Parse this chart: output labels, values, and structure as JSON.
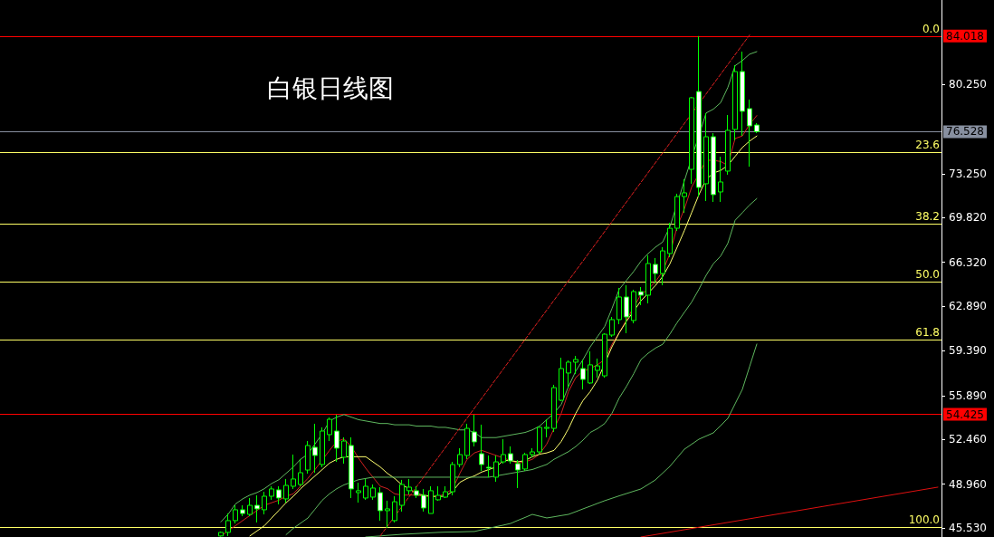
{
  "chart_data": {
    "type": "candlestick",
    "title": "白银日线图",
    "color": "#00ff00",
    "tick_labels": "y",
    "categories": [
      null,
      null,
      null,
      null,
      null,
      null,
      null,
      null,
      null,
      null,
      null,
      null,
      null,
      null,
      null,
      null,
      null,
      null,
      null,
      null,
      null,
      null,
      null,
      null,
      null,
      null,
      null,
      null,
      null,
      null,
      null,
      null,
      null,
      null,
      null,
      null,
      null,
      null,
      null,
      null,
      null,
      null,
      null,
      null,
      null,
      null,
      null,
      null,
      null,
      null,
      null,
      null,
      null,
      null,
      null,
      null,
      null,
      null,
      null,
      null,
      null,
      null,
      null,
      null,
      null,
      null,
      null,
      null,
      null,
      null,
      null,
      null,
      null,
      null,
      null,
      null,
      null,
      null,
      null,
      null,
      null,
      null,
      null,
      null,
      null,
      null,
      null,
      null,
      null,
      null,
      null,
      null,
      null,
      null,
      null,
      null,
      null,
      null,
      null,
      null,
      null,
      null,
      null,
      null,
      null,
      null,
      null,
      null,
      null,
      null,
      null,
      null,
      null,
      null,
      null,
      null,
      null,
      null,
      null,
      null,
      null,
      null,
      null,
      null,
      null,
      null,
      null,
      null,
      null,
      null
    ],
    "ohlc": [
      null,
      null,
      null,
      null,
      null,
      null,
      null,
      null,
      null,
      null,
      null,
      null,
      null,
      null,
      null,
      null,
      null,
      null,
      null,
      null,
      null,
      null,
      null,
      null,
      null,
      null,
      null,
      null,
      null,
      null,
      [
        44.9,
        45.25,
        44.85,
        45.18
      ],
      [
        45.18,
        46.66,
        44.89,
        46.1
      ],
      [
        46.1,
        47.3,
        45.88,
        46.95
      ],
      [
        46.95,
        47.3,
        46.45,
        46.66
      ],
      [
        46.59,
        47.87,
        46.45,
        47.3
      ],
      [
        47.3,
        48.08,
        45.96,
        47.02
      ],
      [
        46.95,
        48.36,
        46.59,
        48.01
      ],
      [
        48.01,
        48.79,
        47.73,
        48.58
      ],
      [
        48.51,
        48.79,
        47.37,
        47.87
      ],
      [
        47.8,
        49.36,
        47.51,
        48.86
      ],
      [
        48.79,
        51.27,
        48.58,
        49.36
      ],
      [
        48.93,
        50.92,
        48.79,
        49.85
      ],
      [
        50.06,
        52.33,
        49.78,
        51.98
      ],
      [
        51.84,
        53.68,
        49.85,
        51.2
      ],
      [
        50.49,
        53.4,
        50.28,
        53.11
      ],
      [
        52.83,
        54.17,
        52.33,
        54.03
      ],
      [
        53.11,
        54.39,
        50.7,
        51.77
      ],
      [
        51.06,
        52.62,
        50.56,
        52.33
      ],
      [
        51.98,
        52.62,
        47.87,
        48.58
      ],
      [
        48.29,
        49.07,
        47.51,
        48.44
      ],
      [
        47.87,
        49.36,
        47.73,
        48.79
      ],
      [
        47.94,
        48.93,
        47.73,
        48.65
      ],
      [
        48.29,
        48.72,
        46.1,
        46.88
      ],
      [
        46.88,
        47.66,
        45.53,
        47.02
      ],
      [
        46.1,
        48.01,
        45.96,
        47.58
      ],
      [
        47.3,
        49.29,
        46.81,
        48.93
      ],
      [
        48.44,
        49.36,
        48.15,
        48.72
      ],
      [
        48.44,
        48.79,
        47.87,
        48.08
      ],
      [
        48.08,
        48.58,
        46.81,
        47.09
      ],
      [
        46.66,
        48.79,
        46.66,
        48.44
      ],
      [
        47.73,
        48.79,
        47.66,
        48.08
      ],
      [
        47.94,
        48.79,
        47.87,
        48.36
      ],
      [
        48.36,
        50.7,
        48.08,
        50.49
      ],
      [
        50.49,
        51.77,
        50.28,
        51.27
      ],
      [
        51.2,
        53.68,
        50.92,
        53.32
      ],
      [
        53.04,
        54.39,
        51.91,
        52.26
      ],
      [
        51.34,
        53.61,
        49.99,
        50.49
      ],
      [
        50.28,
        51.2,
        49.5,
        50.21
      ],
      [
        49.5,
        51.2,
        49.14,
        50.7
      ],
      [
        50.7,
        52.47,
        50.56,
        51.27
      ],
      [
        51.34,
        51.91,
        50.56,
        50.77
      ],
      [
        50.56,
        50.84,
        48.65,
        50.06
      ],
      [
        50.14,
        51.41,
        49.99,
        51.27
      ],
      [
        51.27,
        51.77,
        51.06,
        51.48
      ],
      [
        51.48,
        53.4,
        51.27,
        53.4
      ],
      [
        53.32,
        54.03,
        52.62,
        53.4
      ],
      [
        53.32,
        56.73,
        53.04,
        56.51
      ],
      [
        55.52,
        58.85,
        55.45,
        58.0
      ],
      [
        57.65,
        58.64,
        56.51,
        58.5
      ],
      [
        58.5,
        58.99,
        57.58,
        58.71
      ],
      [
        58.0,
        58.71,
        56.37,
        57.15
      ],
      [
        56.87,
        59.35,
        56.8,
        58.29
      ],
      [
        57.86,
        58.78,
        57.29,
        58.21
      ],
      [
        57.43,
        60.77,
        57.29,
        60.69
      ],
      [
        60.62,
        62.04,
        60.48,
        61.83
      ],
      [
        61.83,
        64.31,
        61.47,
        63.6
      ],
      [
        63.6,
        64.52,
        60.77,
        62.04
      ],
      [
        61.76,
        64.17,
        61.54,
        64.02
      ],
      [
        64.02,
        64.38,
        62.96,
        63.74
      ],
      [
        63.74,
        66.86,
        63.1,
        66.22
      ],
      [
        66.15,
        66.65,
        64.66,
        65.44
      ],
      [
        65.44,
        67.5,
        64.52,
        67.21
      ],
      [
        67.0,
        69.41,
        66.72,
        68.98
      ],
      [
        68.98,
        71.68,
        68.77,
        71.46
      ],
      [
        71.46,
        72.81,
        70.19,
        71.75
      ],
      [
        73.59,
        79.26,
        72.46,
        79.19
      ],
      [
        79.68,
        84.018,
        71.46,
        72.17
      ],
      [
        72.46,
        77.98,
        71.11,
        76.14
      ],
      [
        76.14,
        76.42,
        71.04,
        71.61
      ],
      [
        71.82,
        74.58,
        71.04,
        72.6
      ],
      [
        73.45,
        77.84,
        73.17,
        76.64
      ],
      [
        76.71,
        81.74,
        75.86,
        81.24
      ],
      [
        81.24,
        82.8,
        76.21,
        78.13
      ],
      [
        78.34,
        79.05,
        73.8,
        76.99
      ],
      [
        77.06,
        77.2,
        76.42,
        76.528
      ],
      null,
      null,
      null,
      null,
      null,
      null,
      null,
      null,
      null,
      null,
      null,
      null,
      null,
      null,
      null,
      null,
      null,
      null,
      null,
      null,
      null,
      null,
      null,
      null,
      null
    ],
    "series": [
      {
        "type": "line",
        "color": "#d02020",
        "values": [
          null,
          null,
          null,
          null,
          null,
          null,
          null,
          null,
          null,
          null,
          null,
          null,
          null,
          null,
          null,
          null,
          null,
          null,
          null,
          null,
          null,
          null,
          null,
          null,
          null,
          null,
          null,
          null,
          null,
          null,
          44.9,
          45.3,
          45.7,
          46.1,
          46.5,
          46.9,
          47.3,
          47.5,
          47.7,
          48.0,
          48.2,
          48.8,
          49.4,
          50.1,
          null,
          51.6,
          52.3,
          52.5,
          51.9,
          51.0,
          50.2,
          49.5,
          48.8,
          48.6,
          48.2,
          48.1,
          48.1,
          48.1,
          48.0,
          48.0,
          48.0,
          48.2,
          48.6,
          49.8,
          50.9,
          51.4,
          51.6,
          51.4,
          51.2,
          51.0,
          50.8,
          50.6,
          50.7,
          50.9,
          51.3,
          52.1,
          53.3,
          54.5,
          56.2,
          57.3,
          57.8,
          58.0,
          58.3,
          58.7,
          59.9,
          60.8,
          61.8,
          null,
          63.8,
          64.2,
          64.8,
          65.6,
          67.0,
          69.1,
          70.5,
          72.2,
          null,
          74.3,
          74.3,
          74.2,
          73.9,
          76.0,
          76.2,
          77.1,
          77.8,
          null,
          null,
          null,
          null,
          null,
          null,
          null,
          null,
          null,
          null,
          null,
          null,
          null,
          null,
          null,
          null,
          null,
          null,
          null,
          null,
          null,
          null,
          null,
          null,
          null
        ]
      },
      {
        "type": "line",
        "color": "#ffff70",
        "values": [
          null,
          null,
          null,
          null,
          null,
          null,
          null,
          null,
          null,
          null,
          null,
          null,
          null,
          null,
          null,
          null,
          null,
          null,
          null,
          null,
          null,
          null,
          null,
          null,
          null,
          null,
          null,
          null,
          null,
          null,
          null,
          null,
          null,
          null,
          44.9,
          45.3,
          45.7,
          46.3,
          46.9,
          47.5,
          48.0,
          48.6,
          49.1,
          49.6,
          50.1,
          50.6,
          50.9,
          51.1,
          51.1,
          51.1,
          51.1,
          50.7,
          50.3,
          49.8,
          49.4,
          48.9,
          48.6,
          48.2,
          48.1,
          48.0,
          48.0,
          48.0,
          48.4,
          49.1,
          49.4,
          49.6,
          49.9,
          50.1,
          50.3,
          50.8,
          50.8,
          50.7,
          50.8,
          51.1,
          51.3,
          51.4,
          51.6,
          52.3,
          53.3,
          54.5,
          55.5,
          56.2,
          57.1,
          null,
          59.7,
          60.8,
          61.7,
          null,
          63.3,
          63.9,
          64.5,
          65.2,
          66.2,
          67.5,
          68.8,
          70.2,
          71.6,
          72.8,
          73.3,
          73.5,
          73.9,
          74.6,
          75.3,
          75.8,
          76.2,
          null,
          null,
          null,
          null,
          null,
          null,
          null,
          null,
          null,
          null,
          null,
          null,
          null,
          null,
          null,
          null,
          null,
          null,
          null,
          null,
          null,
          null,
          null,
          null,
          null
        ]
      },
      {
        "type": "line",
        "color": "#5fb85f",
        "values": [
          null,
          null,
          null,
          null,
          null,
          null,
          null,
          null,
          null,
          null,
          null,
          null,
          null,
          null,
          null,
          null,
          null,
          null,
          null,
          null,
          null,
          null,
          null,
          null,
          null,
          null,
          null,
          null,
          null,
          null,
          46.0,
          46.6,
          47.4,
          47.8,
          48.1,
          48.3,
          48.6,
          49.0,
          49.3,
          49.8,
          50.3,
          50.9,
          51.3,
          52.1,
          52.9,
          53.9,
          54.2,
          54.4,
          54.2,
          54.0,
          53.9,
          53.8,
          53.7,
          53.7,
          53.6,
          53.6,
          53.6,
          53.5,
          53.5,
          53.5,
          53.4,
          53.4,
          53.3,
          53.2,
          53.2,
          53.0,
          52.6,
          52.6,
          52.6,
          52.7,
          52.8,
          52.9,
          53.0,
          53.2,
          53.5,
          54.0,
          54.5,
          55.2,
          56.6,
          57.8,
          58.7,
          59.7,
          60.5,
          61.3,
          62.7,
          64.2,
          64.9,
          65.6,
          66.4,
          67.0,
          67.5,
          67.9,
          69.1,
          null,
          72.7,
          null,
          null,
          78.0,
          78.3,
          78.8,
          80.0,
          81.7,
          82.1,
          82.6,
          82.8,
          null,
          null,
          null,
          null,
          null,
          null,
          null,
          null,
          null,
          null,
          null,
          null,
          null,
          null,
          null,
          null,
          null,
          null,
          null,
          null,
          null,
          null,
          null,
          null,
          null
        ]
      },
      {
        "type": "line",
        "color": "#5fb85f",
        "values": [
          null,
          null,
          null,
          null,
          null,
          null,
          null,
          null,
          null,
          null,
          null,
          null,
          null,
          null,
          null,
          null,
          null,
          null,
          null,
          null,
          null,
          null,
          null,
          null,
          null,
          null,
          null,
          null,
          null,
          null,
          null,
          null,
          null,
          null,
          null,
          null,
          null,
          null,
          null,
          45.0,
          45.5,
          45.9,
          46.3,
          47.0,
          47.7,
          48.2,
          48.6,
          48.9,
          49.1,
          49.3,
          49.4,
          49.5,
          49.5,
          49.5,
          49.5,
          49.5,
          49.5,
          49.5,
          49.5,
          49.5,
          49.5,
          49.5,
          49.5,
          49.5,
          49.5,
          49.5,
          49.5,
          49.5,
          49.6,
          49.7,
          49.8,
          49.9,
          50.0,
          50.1,
          50.3,
          50.5,
          50.9,
          51.2,
          51.5,
          51.9,
          52.4,
          53.0,
          53.3,
          53.7,
          54.5,
          55.7,
          56.6,
          57.6,
          58.7,
          59.2,
          59.6,
          59.9,
          60.7,
          61.6,
          62.4,
          63.2,
          64.2,
          65.3,
          66.2,
          66.8,
          67.8,
          69.6,
          70.2,
          70.8,
          71.3,
          null,
          null,
          null,
          null,
          null,
          null,
          null,
          null,
          null,
          null,
          null,
          null,
          null,
          null,
          null,
          null,
          null,
          null,
          null,
          null,
          null,
          null,
          null,
          null,
          null
        ]
      },
      {
        "type": "line",
        "color": "#5fb85f",
        "values": [
          null,
          null,
          null,
          null,
          null,
          null,
          null,
          null,
          null,
          null,
          null,
          null,
          null,
          null,
          null,
          null,
          null,
          null,
          null,
          null,
          null,
          null,
          null,
          null,
          null,
          null,
          null,
          null,
          null,
          null,
          null,
          null,
          null,
          null,
          null,
          null,
          null,
          null,
          null,
          null,
          null,
          null,
          null,
          null,
          null,
          null,
          null,
          null,
          null,
          null,
          44.82,
          44.86,
          44.9,
          44.95,
          44.99,
          45.03,
          45.06,
          45.09,
          45.12,
          45.15,
          45.18,
          45.2,
          45.21,
          45.22,
          45.24,
          45.25,
          45.38,
          45.5,
          45.63,
          45.75,
          45.88,
          46.12,
          46.35,
          46.59,
          46.45,
          46.31,
          46.4,
          46.5,
          46.59,
          46.8,
          47.02,
          47.23,
          47.45,
          47.66,
          47.85,
          48.04,
          48.22,
          48.4,
          48.58,
          48.93,
          49.29,
          49.82,
          50.35,
          51.02,
          51.69,
          52.08,
          52.47,
          52.72,
          52.97,
          53.54,
          54.1,
          55.24,
          56.37,
          58.15,
          59.92,
          null,
          null,
          null,
          null,
          null,
          null,
          null,
          null,
          null,
          null,
          null,
          null,
          null,
          null,
          null,
          null,
          null,
          null,
          null,
          null,
          null,
          null,
          null,
          null,
          null
        ]
      },
      {
        "type": "line",
        "color": "#e02020",
        "line_style": "dashed",
        "values": [
          null,
          null,
          null,
          null,
          null,
          null,
          null,
          null,
          null,
          null,
          null,
          null,
          null,
          null,
          null,
          null,
          null,
          null,
          null,
          null,
          null,
          null,
          null,
          null,
          null,
          null,
          null,
          null,
          null,
          null,
          null,
          null,
          null,
          null,
          null,
          null,
          null,
          null,
          null,
          null,
          null,
          null,
          null,
          null,
          null,
          null,
          null,
          null,
          null,
          null,
          null,
          null,
          44.9,
          null,
          null,
          null,
          null,
          null,
          null,
          null,
          null,
          null,
          null,
          null,
          null,
          null,
          null,
          null,
          null,
          null,
          null,
          null,
          null,
          null,
          null,
          null,
          null,
          null,
          null,
          null,
          null,
          null,
          null,
          null,
          null,
          null,
          null,
          null,
          null,
          null,
          null,
          null,
          null,
          null,
          null,
          null,
          null,
          null,
          null,
          null,
          null,
          null,
          null,
          84.1,
          null,
          null,
          null,
          null,
          null,
          null,
          null,
          null,
          null,
          null,
          null,
          null,
          null,
          null,
          null,
          null,
          null,
          null,
          null,
          null,
          null,
          null,
          null,
          null,
          null,
          null
        ]
      },
      {
        "type": "line",
        "color": "#e01010",
        "values": [
          null,
          null,
          null,
          null,
          null,
          null,
          null,
          null,
          null,
          null,
          null,
          null,
          null,
          null,
          null,
          null,
          null,
          null,
          null,
          null,
          null,
          null,
          null,
          null,
          null,
          null,
          null,
          null,
          null,
          null,
          null,
          null,
          null,
          null,
          null,
          null,
          null,
          null,
          null,
          null,
          null,
          null,
          null,
          null,
          null,
          null,
          null,
          null,
          null,
          null,
          null,
          null,
          null,
          null,
          null,
          null,
          null,
          null,
          null,
          null,
          null,
          null,
          null,
          null,
          null,
          null,
          null,
          null,
          null,
          null,
          null,
          null,
          null,
          null,
          null,
          null,
          null,
          null,
          null,
          null,
          null,
          null,
          null,
          null,
          null,
          null,
          null,
          null,
          44.82,
          null,
          null,
          null,
          null,
          null,
          null,
          null,
          null,
          null,
          null,
          null,
          null,
          null,
          null,
          null,
          null,
          null,
          null,
          null,
          null,
          null,
          null,
          null,
          null,
          null,
          null,
          null,
          null,
          null,
          null,
          null,
          null,
          null,
          null,
          null,
          null,
          null,
          null,
          null,
          null,
          48.72
        ]
      }
    ],
    "ref_lines": [
      {
        "axis": "y",
        "value": 84.018,
        "label": "84.018",
        "color": "#ff0000"
      },
      {
        "axis": "y",
        "value": 76.528,
        "label": "76.528",
        "color": "#8890a0"
      },
      {
        "axis": "y",
        "value": 54.425,
        "label": "54.425",
        "color": "#ff0000"
      },
      {
        "axis": "y",
        "value": 74.95,
        "color": "#ffff66"
      },
      {
        "axis": "y",
        "value": 69.34,
        "color": "#ffff66"
      },
      {
        "axis": "y",
        "value": 64.81,
        "color": "#ffff66"
      },
      {
        "axis": "y",
        "value": 60.28,
        "color": "#ffff66"
      },
      {
        "axis": "y",
        "value": 45.6,
        "color": "#ffff66"
      }
    ],
    "annotations": [
      {
        "text": "0.0",
        "y": 84.018
      },
      {
        "text": "23.6",
        "y": 74.95
      },
      {
        "text": "38.2",
        "y": 69.34
      },
      {
        "text": "50.0",
        "y": 64.81
      },
      {
        "text": "61.8",
        "y": 60.28
      },
      {
        "text": "100.0",
        "y": 45.6
      }
    ],
    "ylim": [
      44.82,
      86.84
    ],
    "yticks": [
      {
        "value": 45.53,
        "label": "45.530"
      },
      {
        "value": 48.96,
        "label": "48.960"
      },
      {
        "value": 52.46,
        "label": "52.460"
      },
      {
        "value": 55.89,
        "label": "55.890"
      },
      {
        "value": 59.39,
        "label": "59.390"
      },
      {
        "value": 62.89,
        "label": "62.890"
      },
      {
        "value": 66.32,
        "label": "66.320"
      },
      {
        "value": 69.82,
        "label": "69.820"
      },
      {
        "value": 73.25,
        "label": "73.250"
      },
      {
        "value": 80.25,
        "label": "80.250"
      }
    ],
    "grid": false
  }
}
